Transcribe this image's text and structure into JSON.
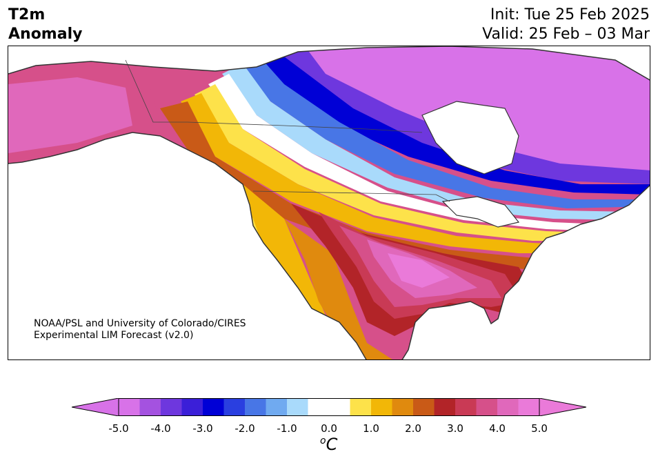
{
  "header": {
    "title_line1": "T2m",
    "title_line2": "Anomaly",
    "init": "Init: Tue 25 Feb 2025",
    "valid": "Valid: 25 Feb – 03 Mar"
  },
  "credit": {
    "line1": "NOAA/PSL and University of Colorado/CIRES",
    "line2": "Experimental LIM Forecast (v2.0)"
  },
  "colorbar": {
    "unit_base": "C",
    "unit_sup": "o",
    "tick_labels": [
      "-5.0",
      "-4.0",
      "-3.0",
      "-2.0",
      "-1.0",
      "0.0",
      "1.0",
      "2.0",
      "3.0",
      "4.0",
      "5.0"
    ],
    "colors": [
      "#d872e8",
      "#a452e0",
      "#6e37de",
      "#3b1fd8",
      "#0000d6",
      "#2a3fe0",
      "#4876e6",
      "#70aaf0",
      "#a9dafb",
      "#ffffff",
      "#ffffff",
      "#fde24a",
      "#f2b707",
      "#e08a0e",
      "#c95a17",
      "#b22428",
      "#c93a55",
      "#d6508a",
      "#e068bb",
      "#ea7ad9"
    ],
    "extend_low_color": "#d872e8",
    "extend_high_color": "#ea7ad9"
  }
}
